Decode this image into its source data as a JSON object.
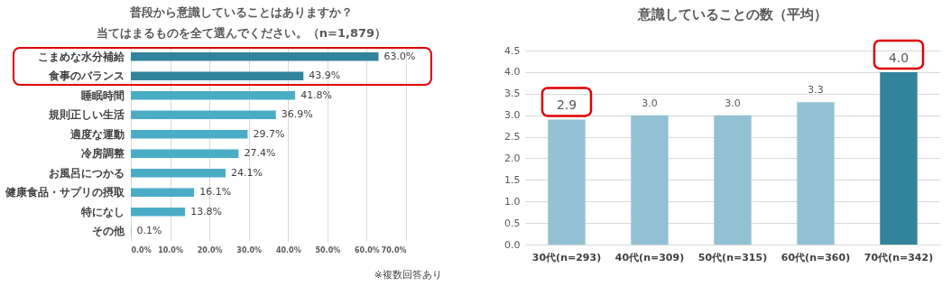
{
  "chart_data": [
    {
      "type": "bar",
      "orientation": "horizontal",
      "title": "普段から意識していることはありますか？",
      "subtitle": "当てはまるものを全て選んでください。（n=1,879）",
      "categories": [
        "こまめな水分補給",
        "食事のバランス",
        "睡眠時間",
        "規則正しい生活",
        "適度な運動",
        "冷房調整",
        "お風呂につかる",
        "健康食品・サプリの摂取",
        "特になし",
        "その他"
      ],
      "values": [
        63.0,
        43.9,
        41.8,
        36.9,
        29.7,
        27.4,
        24.1,
        16.1,
        13.8,
        0.1
      ],
      "colors": [
        "#31849b",
        "#31849b",
        "#4bacc6",
        "#4bacc6",
        "#4bacc6",
        "#4bacc6",
        "#4bacc6",
        "#4bacc6",
        "#4bacc6",
        "#4bacc6"
      ],
      "value_labels": [
        "63.0%",
        "43.9%",
        "41.8%",
        "36.9%",
        "29.7%",
        "27.4%",
        "24.1%",
        "16.1%",
        "13.8%",
        "0.1%"
      ],
      "xlim": [
        0,
        70
      ],
      "xticks": [
        {
          "value": 0,
          "label": "0.0%"
        },
        {
          "value": 10,
          "label": "10.0%"
        },
        {
          "value": 20,
          "label": "20.0%"
        },
        {
          "value": 30,
          "label": "30.0%"
        },
        {
          "value": 40,
          "label": "40.0%"
        },
        {
          "value": 50,
          "label": "50.0%"
        },
        {
          "value": 60,
          "label": "60.0%"
        },
        {
          "value": 70,
          "label": "70.0%"
        }
      ],
      "grid": "x",
      "annotations": [
        "※複数回答あり"
      ]
    },
    {
      "type": "bar",
      "title": "意識していることの数（平均）",
      "categories": [
        "30代(n=293)",
        "40代(n=309)",
        "50代(n=315)",
        "60代(n=360)",
        "70代(n=342)"
      ],
      "values": [
        2.9,
        3.0,
        3.0,
        3.3,
        4.0
      ],
      "colors": [
        "#92c1d4",
        "#92c1d4",
        "#92c1d4",
        "#92c1d4",
        "#31849b"
      ],
      "value_labels": [
        "2.9",
        "3.0",
        "3.0",
        "3.3",
        "4.0"
      ],
      "ylim": [
        0,
        4.5
      ],
      "yticks": [
        {
          "value": 0,
          "label": "0.0"
        },
        {
          "value": 0.5,
          "label": "0.5"
        },
        {
          "value": 1,
          "label": "1.0"
        },
        {
          "value": 1.5,
          "label": "1.5"
        },
        {
          "value": 2,
          "label": "2.0"
        },
        {
          "value": 2.5,
          "label": "2.5"
        },
        {
          "value": 3,
          "label": "3.0"
        },
        {
          "value": 3.5,
          "label": "3.5"
        },
        {
          "value": 4,
          "label": "4.0"
        },
        {
          "value": 4.5,
          "label": "4.5"
        }
      ],
      "grid": "y"
    }
  ]
}
